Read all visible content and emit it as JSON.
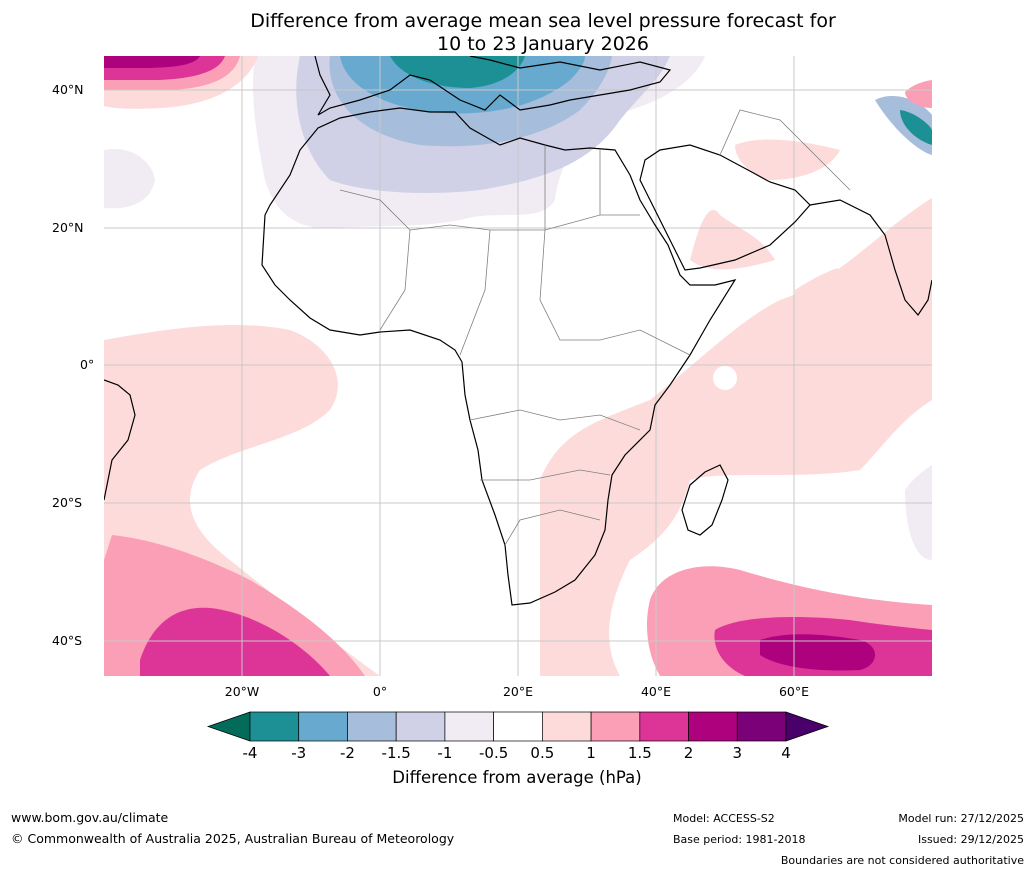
{
  "title_line1": "Difference from average mean sea level pressure forecast for",
  "title_line2": "10 to 23 January 2026",
  "map": {
    "lon_range_deg": [
      -40,
      80
    ],
    "lat_range_deg": [
      -45,
      45
    ],
    "lat_labels": [
      "40°N",
      "20°N",
      "0°",
      "20°S",
      "40°S"
    ],
    "lon_labels": [
      "20°W",
      "0°",
      "20°E",
      "40°E",
      "60°E"
    ]
  },
  "colorbar": {
    "title": "Difference from average (hPa)",
    "tick_labels": [
      "-4",
      "-3",
      "-2",
      "-1.5",
      "-1",
      "-0.5",
      "0.5",
      "1",
      "1.5",
      "2",
      "3",
      "4"
    ],
    "colors": [
      "#036b5a",
      "#1d9096",
      "#67a9cf",
      "#a6bddb",
      "#d0d1e6",
      "#f1ecf3",
      "#ffffff",
      "#fddbdb",
      "#fa9fb5",
      "#dd3497",
      "#ae017e",
      "#7a0177",
      "#49006a"
    ]
  },
  "footer": {
    "website": "www.bom.gov.au/climate",
    "copyright": "© Commonwealth of Australia 2025, Australian Bureau of Meteorology",
    "model": "Model: ACCESS-S2",
    "base_period": "Base period: 1981-2018",
    "model_run": "Model run: 27/12/2025",
    "issued": "Issued: 29/12/2025",
    "disclaimer": "Boundaries are not considered authoritative"
  }
}
